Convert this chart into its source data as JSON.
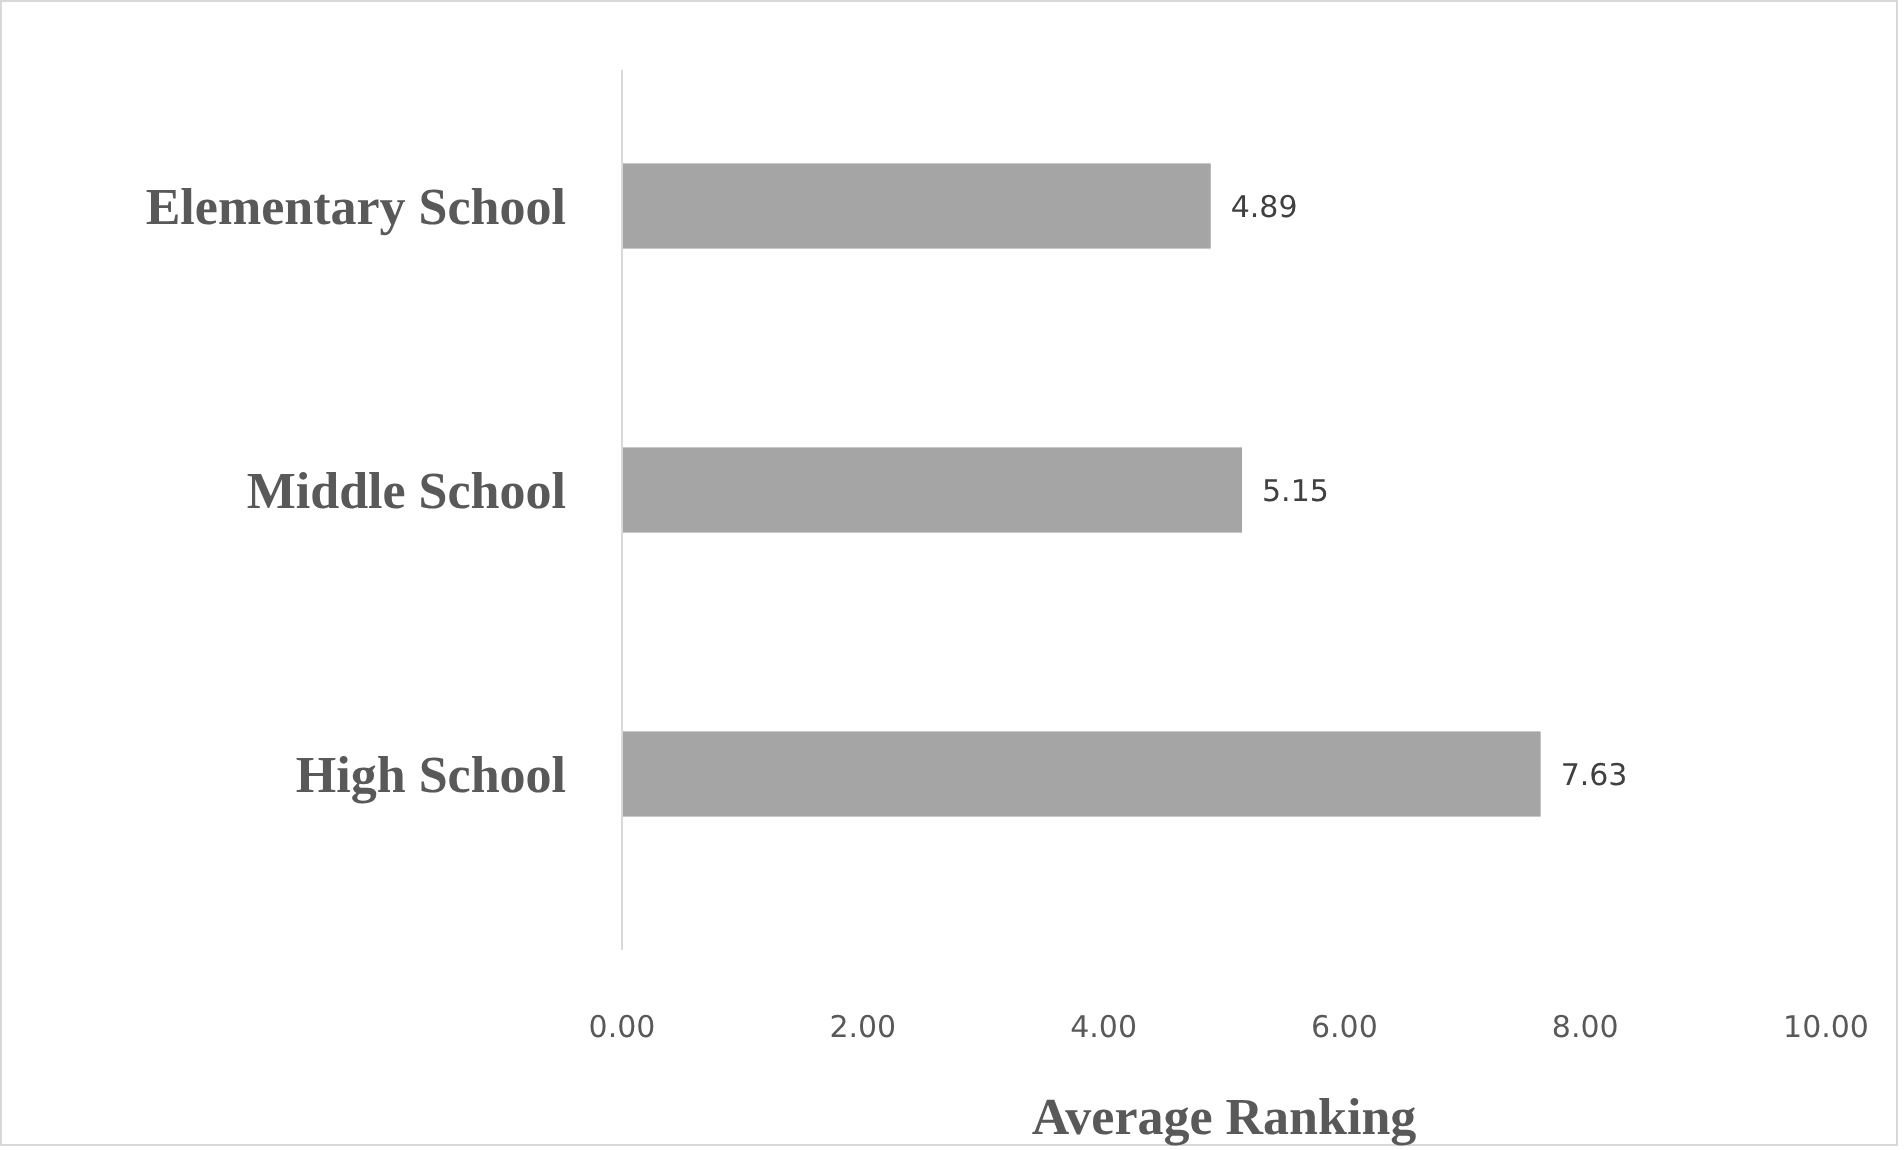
{
  "chart_data": {
    "type": "bar",
    "orientation": "horizontal",
    "categories": [
      "Elementary School",
      "Middle School",
      "High School"
    ],
    "values": [
      4.89,
      5.15,
      7.63
    ],
    "color": "#a5a5a5",
    "data_labels": true,
    "xlabel": "Average Ranking",
    "xlim": [
      0,
      10
    ],
    "xticks": [
      {
        "value": 0,
        "label": "0.00"
      },
      {
        "value": 2,
        "label": "2.00"
      },
      {
        "value": 4,
        "label": "4.00"
      },
      {
        "value": 6,
        "label": "6.00"
      },
      {
        "value": 8,
        "label": "8.00"
      },
      {
        "value": 10,
        "label": "10.00"
      }
    ],
    "grid": false
  }
}
